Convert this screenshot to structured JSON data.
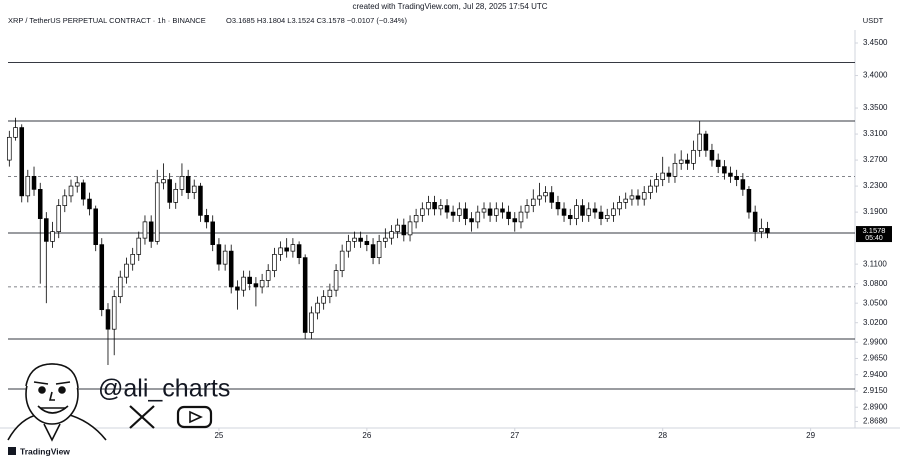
{
  "header": {
    "created": "created with TradingView.com, Jul 28, 2025 17:54 UTC",
    "symbol": "XRP / TetherUS PERPETUAL CONTRACT · 1h · BINANCE",
    "ohlc": "O3.1685 H3.1804 L3.1524 C3.1578 −0.0107 (−0.34%)"
  },
  "chart_data": {
    "type": "candlestick",
    "y_unit": "USDT",
    "up_color": "#ffffff",
    "down_color": "#000000",
    "outline_color": "#000000",
    "countdown": "05:40",
    "watermark": "@ali_charts",
    "brand": "TradingView",
    "xlim": [
      23.52,
      29.3
    ],
    "xticks": [
      25,
      26,
      27,
      28,
      29
    ],
    "ylim": [
      2.855,
      3.47
    ],
    "yticks": [
      {
        "value": 3.45,
        "label": "3.4500"
      },
      {
        "value": 3.4,
        "label": "3.4000"
      },
      {
        "value": 3.35,
        "label": "3.3500"
      },
      {
        "value": 3.31,
        "label": "3.3100"
      },
      {
        "value": 3.27,
        "label": "3.2700"
      },
      {
        "value": 3.23,
        "label": "3.2300"
      },
      {
        "value": 3.19,
        "label": "3.1900"
      },
      {
        "value": 3.11,
        "label": "3.1100"
      },
      {
        "value": 3.08,
        "label": "3.0800"
      },
      {
        "value": 3.05,
        "label": "3.0500"
      },
      {
        "value": 3.02,
        "label": "3.0200"
      },
      {
        "value": 2.99,
        "label": "2.9900"
      },
      {
        "value": 2.965,
        "label": "2.9650"
      },
      {
        "value": 2.94,
        "label": "2.9400"
      },
      {
        "value": 2.915,
        "label": "2.9150"
      },
      {
        "value": 2.89,
        "label": "2.8900"
      },
      {
        "value": 2.868,
        "label": "2.8680"
      }
    ],
    "levels": [
      {
        "value": 3.42,
        "style": "solid"
      },
      {
        "value": 3.33,
        "style": "solid"
      },
      {
        "value": 3.245,
        "style": "dashed"
      },
      {
        "value": 3.1578,
        "style": "solid"
      },
      {
        "value": 3.075,
        "style": "dashed"
      },
      {
        "value": 2.995,
        "style": "solid"
      },
      {
        "value": 2.918,
        "style": "solid"
      }
    ],
    "x": [
      23.583,
      23.625,
      23.667,
      23.708,
      23.75,
      23.792,
      23.833,
      23.875,
      23.917,
      23.958,
      24.0,
      24.042,
      24.083,
      24.125,
      24.167,
      24.208,
      24.25,
      24.292,
      24.333,
      24.375,
      24.417,
      24.458,
      24.5,
      24.542,
      24.583,
      24.625,
      24.667,
      24.708,
      24.75,
      24.792,
      24.833,
      24.875,
      24.917,
      24.958,
      25.0,
      25.042,
      25.083,
      25.125,
      25.167,
      25.208,
      25.25,
      25.292,
      25.333,
      25.375,
      25.417,
      25.458,
      25.5,
      25.542,
      25.583,
      25.625,
      25.667,
      25.708,
      25.75,
      25.792,
      25.833,
      25.875,
      25.917,
      25.958,
      26.0,
      26.042,
      26.083,
      26.125,
      26.167,
      26.208,
      26.25,
      26.292,
      26.333,
      26.375,
      26.417,
      26.458,
      26.5,
      26.542,
      26.583,
      26.625,
      26.667,
      26.708,
      26.75,
      26.792,
      26.833,
      26.875,
      26.917,
      26.958,
      27.0,
      27.042,
      27.083,
      27.125,
      27.167,
      27.208,
      27.25,
      27.292,
      27.333,
      27.375,
      27.417,
      27.458,
      27.5,
      27.542,
      27.583,
      27.625,
      27.667,
      27.708,
      27.75,
      27.792,
      27.833,
      27.875,
      27.917,
      27.958,
      28.0,
      28.042,
      28.083,
      28.125,
      28.167,
      28.208,
      28.25,
      28.292,
      28.333,
      28.375,
      28.417,
      28.458,
      28.5,
      28.542,
      28.583,
      28.625,
      28.667,
      28.708
    ],
    "open": [
      3.27,
      3.305,
      3.32,
      3.215,
      3.245,
      3.225,
      3.18,
      3.145,
      3.16,
      3.2,
      3.215,
      3.23,
      3.235,
      3.21,
      3.195,
      3.14,
      3.04,
      3.01,
      3.06,
      3.09,
      3.11,
      3.125,
      3.15,
      3.175,
      3.145,
      3.235,
      3.24,
      3.205,
      3.225,
      3.245,
      3.22,
      3.23,
      3.185,
      3.175,
      3.14,
      3.11,
      3.13,
      3.075,
      3.07,
      3.09,
      3.08,
      3.075,
      3.085,
      3.1,
      3.125,
      3.135,
      3.13,
      3.14,
      3.12,
      3.005,
      3.035,
      3.05,
      3.06,
      3.07,
      3.1,
      3.13,
      3.145,
      3.15,
      3.145,
      3.14,
      3.12,
      3.145,
      3.15,
      3.16,
      3.17,
      3.155,
      3.175,
      3.185,
      3.195,
      3.205,
      3.195,
      3.2,
      3.19,
      3.185,
      3.195,
      3.18,
      3.175,
      3.19,
      3.195,
      3.185,
      3.195,
      3.19,
      3.18,
      3.175,
      3.19,
      3.2,
      3.21,
      3.215,
      3.22,
      3.205,
      3.195,
      3.185,
      3.18,
      3.2,
      3.185,
      3.195,
      3.19,
      3.18,
      3.185,
      3.195,
      3.205,
      3.21,
      3.215,
      3.21,
      3.22,
      3.23,
      3.24,
      3.25,
      3.245,
      3.265,
      3.27,
      3.265,
      3.285,
      3.31,
      3.285,
      3.27,
      3.26,
      3.25,
      3.245,
      3.24,
      3.225,
      3.19,
      3.16,
      3.165
    ],
    "high": [
      3.315,
      3.335,
      3.325,
      3.255,
      3.26,
      3.235,
      3.19,
      3.175,
      3.21,
      3.225,
      3.24,
      3.245,
      3.24,
      3.22,
      3.2,
      3.15,
      3.05,
      3.07,
      3.1,
      3.12,
      3.135,
      3.16,
      3.185,
      3.185,
      3.255,
      3.265,
      3.25,
      3.235,
      3.265,
      3.255,
      3.24,
      3.235,
      3.195,
      3.185,
      3.15,
      3.14,
      3.14,
      3.085,
      3.1,
      3.1,
      3.09,
      3.095,
      3.11,
      3.135,
      3.145,
      3.15,
      3.15,
      3.145,
      3.125,
      3.045,
      3.06,
      3.07,
      3.08,
      3.11,
      3.14,
      3.155,
      3.16,
      3.16,
      3.155,
      3.15,
      3.155,
      3.165,
      3.17,
      3.18,
      3.18,
      3.185,
      3.195,
      3.205,
      3.215,
      3.215,
      3.21,
      3.21,
      3.2,
      3.205,
      3.205,
      3.19,
      3.2,
      3.205,
      3.205,
      3.205,
      3.205,
      3.2,
      3.19,
      3.2,
      3.21,
      3.225,
      3.235,
      3.23,
      3.23,
      3.215,
      3.205,
      3.195,
      3.21,
      3.21,
      3.205,
      3.205,
      3.2,
      3.195,
      3.205,
      3.215,
      3.22,
      3.225,
      3.225,
      3.23,
      3.24,
      3.25,
      3.275,
      3.26,
      3.28,
      3.285,
      3.28,
      3.3,
      3.33,
      3.315,
      3.295,
      3.28,
      3.27,
      3.26,
      3.255,
      3.25,
      3.23,
      3.2,
      3.18,
      3.175
    ],
    "low": [
      3.26,
      3.3,
      3.205,
      3.205,
      3.215,
      3.08,
      3.05,
      3.135,
      3.15,
      3.19,
      3.205,
      3.22,
      3.2,
      3.185,
      3.13,
      3.03,
      2.955,
      2.97,
      3.05,
      3.08,
      3.1,
      3.115,
      3.14,
      3.135,
      3.14,
      3.225,
      3.195,
      3.195,
      3.215,
      3.21,
      3.21,
      3.175,
      3.165,
      3.13,
      3.1,
      3.1,
      3.065,
      3.04,
      3.06,
      3.07,
      3.045,
      3.065,
      3.075,
      3.09,
      3.115,
      3.12,
      3.12,
      3.11,
      2.995,
      2.995,
      3.025,
      3.04,
      3.05,
      3.06,
      3.09,
      3.12,
      3.135,
      3.135,
      3.13,
      3.11,
      3.11,
      3.135,
      3.14,
      3.15,
      3.145,
      3.145,
      3.165,
      3.175,
      3.185,
      3.185,
      3.185,
      3.18,
      3.175,
      3.175,
      3.17,
      3.16,
      3.165,
      3.18,
      3.175,
      3.175,
      3.18,
      3.17,
      3.16,
      3.165,
      3.18,
      3.19,
      3.2,
      3.205,
      3.195,
      3.185,
      3.175,
      3.17,
      3.17,
      3.175,
      3.175,
      3.18,
      3.17,
      3.175,
      3.175,
      3.185,
      3.195,
      3.2,
      3.2,
      3.2,
      3.21,
      3.22,
      3.23,
      3.235,
      3.235,
      3.255,
      3.255,
      3.255,
      3.275,
      3.275,
      3.26,
      3.25,
      3.24,
      3.235,
      3.23,
      3.215,
      3.18,
      3.145,
      3.15,
      3.15
    ],
    "close": [
      3.305,
      3.32,
      3.215,
      3.245,
      3.225,
      3.18,
      3.145,
      3.16,
      3.2,
      3.215,
      3.23,
      3.235,
      3.21,
      3.195,
      3.14,
      3.04,
      3.01,
      3.06,
      3.09,
      3.11,
      3.125,
      3.15,
      3.175,
      3.145,
      3.235,
      3.24,
      3.205,
      3.225,
      3.245,
      3.22,
      3.23,
      3.185,
      3.175,
      3.14,
      3.11,
      3.13,
      3.075,
      3.07,
      3.09,
      3.08,
      3.075,
      3.085,
      3.1,
      3.125,
      3.135,
      3.13,
      3.14,
      3.12,
      3.005,
      3.035,
      3.05,
      3.06,
      3.07,
      3.1,
      3.13,
      3.145,
      3.15,
      3.145,
      3.14,
      3.12,
      3.145,
      3.15,
      3.16,
      3.17,
      3.155,
      3.175,
      3.185,
      3.195,
      3.205,
      3.195,
      3.2,
      3.19,
      3.185,
      3.195,
      3.18,
      3.175,
      3.19,
      3.195,
      3.185,
      3.195,
      3.19,
      3.18,
      3.175,
      3.19,
      3.2,
      3.21,
      3.215,
      3.22,
      3.205,
      3.195,
      3.185,
      3.18,
      3.2,
      3.185,
      3.195,
      3.19,
      3.18,
      3.185,
      3.195,
      3.205,
      3.21,
      3.215,
      3.21,
      3.22,
      3.23,
      3.24,
      3.25,
      3.245,
      3.265,
      3.27,
      3.265,
      3.285,
      3.31,
      3.285,
      3.27,
      3.26,
      3.25,
      3.245,
      3.24,
      3.225,
      3.19,
      3.16,
      3.165,
      3.1578
    ]
  }
}
